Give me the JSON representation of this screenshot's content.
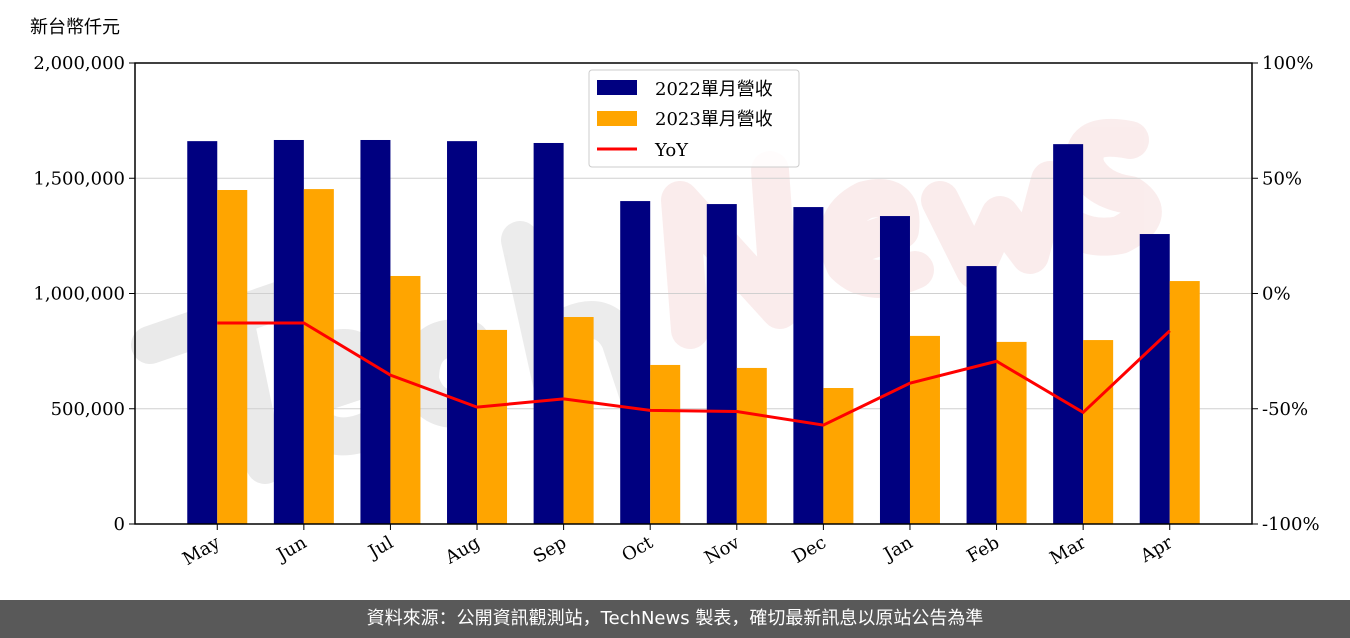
{
  "chart_data": {
    "type": "bar",
    "ylabel": "新台幣仟元",
    "categories": [
      "May",
      "Jun",
      "Jul",
      "Aug",
      "Sep",
      "Oct",
      "Nov",
      "Dec",
      "Jan",
      "Feb",
      "Mar",
      "Apr"
    ],
    "ylim": [
      0,
      2000000
    ],
    "yticks": [
      "0",
      "500,000",
      "1,000,000",
      "1,500,000",
      "2,000,000"
    ],
    "y2lim": [
      -100,
      100
    ],
    "y2ticks": [
      "-100%",
      "-50%",
      "0%",
      "50%",
      "100%"
    ],
    "grid": true,
    "legend_placement": "top-center",
    "series": [
      {
        "name": "2022單月營收",
        "type": "bar",
        "color": "#000080",
        "values": [
          1661000,
          1666000,
          1666000,
          1661000,
          1653000,
          1401000,
          1388000,
          1375000,
          1336000,
          1119000,
          1648000,
          1258000
        ]
      },
      {
        "name": "2023單月營收",
        "type": "bar",
        "color": "#FFA500",
        "values": [
          1449000,
          1453000,
          1076000,
          842000,
          898000,
          690000,
          677000,
          590000,
          816000,
          790000,
          798000,
          1054000
        ]
      },
      {
        "name": "YoY",
        "type": "line",
        "axis": "right",
        "color": "#FF0000",
        "values": [
          -12.8,
          -12.8,
          -35.4,
          -49.3,
          -45.7,
          -50.7,
          -51.2,
          -57.1,
          -38.9,
          -29.4,
          -51.6,
          -16.2
        ]
      }
    ]
  },
  "watermark": "TechNews",
  "footer": "資料來源：公開資訊觀測站，TechNews 製表，確切最新訊息以原站公告為準"
}
